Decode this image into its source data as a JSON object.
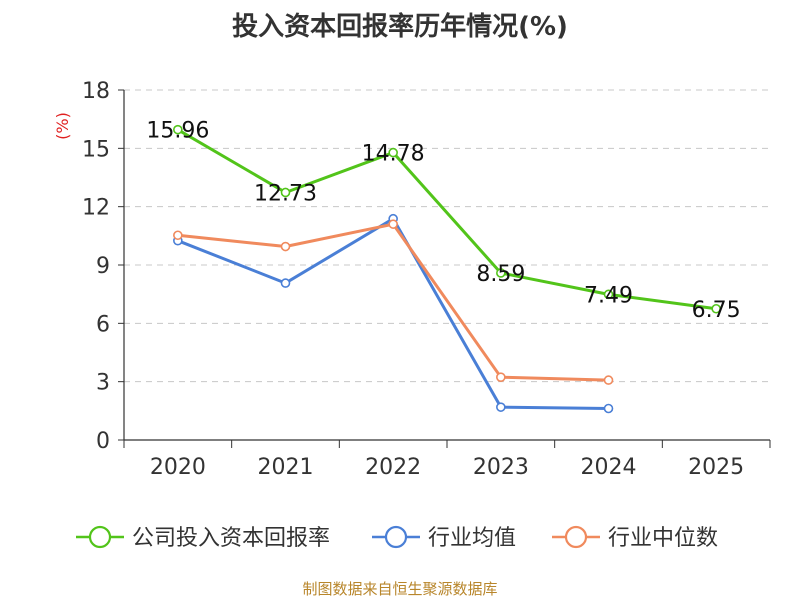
{
  "chart_data": {
    "type": "line",
    "title": "投入资本回报率历年情况(%)",
    "ylabel": "(%)",
    "xlabel": "",
    "categories": [
      "2020",
      "2021",
      "2022",
      "2023",
      "2024",
      "2025"
    ],
    "ylim": [
      0,
      18
    ],
    "yticks": [
      0,
      3,
      6,
      9,
      12,
      15,
      18
    ],
    "grid": true,
    "legend_position": "bottom",
    "series": [
      {
        "name": "公司投入资本回报率",
        "color": "#52c41a",
        "values": [
          15.96,
          12.73,
          14.78,
          8.59,
          7.49,
          6.75
        ],
        "labels": [
          "15.96",
          "12.73",
          "14.78",
          "8.59",
          "7.49",
          "6.75"
        ]
      },
      {
        "name": "行业均值",
        "color": "#4a7fd6",
        "values": [
          10.25,
          8.07,
          11.38,
          1.69,
          1.62,
          null
        ]
      },
      {
        "name": "行业中位数",
        "color": "#f08a5d",
        "values": [
          10.53,
          9.95,
          11.1,
          3.23,
          3.08,
          null
        ]
      }
    ]
  },
  "source": "制图数据来自恒生聚源数据库"
}
